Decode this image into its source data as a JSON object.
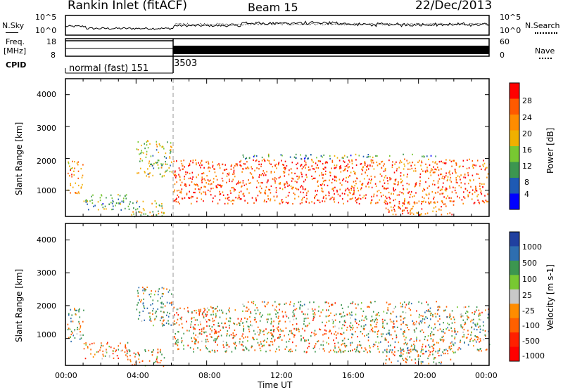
{
  "header": {
    "station": "Rankin Inlet (fitACF)",
    "beam": "Beam 15",
    "date": "22/Dec/2013"
  },
  "panels": {
    "nsky": {
      "label": "N.Sky",
      "right_label": "N.Search",
      "ticks": [
        "10^5",
        "10^0"
      ]
    },
    "freq": {
      "label_line1": "Freq.",
      "label_line2": "[MHz]",
      "left_ticks": [
        "18",
        "8"
      ],
      "right_ticks": [
        "60",
        "0"
      ],
      "right_label": "Nave"
    },
    "cpid": {
      "label": "CPID",
      "modes": [
        "normal (fast) 151",
        "3503"
      ]
    }
  },
  "time_axis": {
    "title": "Time UT",
    "ticks": [
      "00:00",
      "04:00",
      "08:00",
      "12:00",
      "16:00",
      "20:00",
      "00:00"
    ]
  },
  "range_axis": {
    "title": "Slant Range [km]",
    "ticks": [
      "4000",
      "3000",
      "2000",
      "1000"
    ]
  },
  "power_scale": {
    "title": "Power [dB]",
    "ticks": [
      "28",
      "24",
      "20",
      "16",
      "12",
      "8",
      "4"
    ],
    "colors": [
      "#ff0000",
      "#ff5a00",
      "#ff8c00",
      "#f0b000",
      "#78c832",
      "#3c9650",
      "#1e5ab4",
      "#0000ff"
    ]
  },
  "velocity_scale": {
    "title": "Velocity [m s-1]",
    "ticks": [
      "1000",
      "500",
      "100",
      "25",
      "-25",
      "-100",
      "-500",
      "-1000"
    ],
    "colors": [
      "#2040a0",
      "#2e6eb0",
      "#3c9650",
      "#78c832",
      "#c8c8c8",
      "#ff8c00",
      "#ff6000",
      "#ff2000",
      "#ff0000"
    ]
  },
  "chart_data": [
    {
      "type": "heatmap",
      "title": "Power",
      "xlabel": "Time UT",
      "ylabel": "Slant Range [km]",
      "xlim": [
        "00:00",
        "24:00"
      ],
      "ylim": [
        180,
        4500
      ],
      "colorbar": {
        "label": "Power [dB]",
        "range": [
          0,
          30
        ],
        "ticks": [
          4,
          8,
          12,
          16,
          20,
          24,
          28
        ]
      },
      "scatter_bands": [
        {
          "t0": 0.1,
          "t1": 1.0,
          "r0": 900,
          "r1": 2000,
          "value": 22
        },
        {
          "t0": 1.0,
          "t1": 3.5,
          "r0": 400,
          "r1": 900,
          "value": 10
        },
        {
          "t0": 3.5,
          "t1": 5.6,
          "r0": 180,
          "r1": 700,
          "value": 14
        },
        {
          "t0": 4.0,
          "t1": 6.0,
          "r0": 1400,
          "r1": 2600,
          "value": 14
        },
        {
          "t0": 6.1,
          "t1": 16.0,
          "r0": 600,
          "r1": 2000,
          "value": 27
        },
        {
          "t0": 10.0,
          "t1": 16.0,
          "r0": 2000,
          "r1": 2150,
          "value": 9
        },
        {
          "t0": 16.0,
          "t1": 24.0,
          "r0": 600,
          "r1": 2000,
          "value": 25
        },
        {
          "t0": 18.0,
          "t1": 22.0,
          "r0": 250,
          "r1": 700,
          "value": 24
        },
        {
          "t0": 16.0,
          "t1": 21.0,
          "r0": 2050,
          "r1": 2150,
          "value": 8
        }
      ]
    },
    {
      "type": "heatmap",
      "title": "Velocity",
      "xlabel": "Time UT",
      "ylabel": "Slant Range [km]",
      "xlim": [
        "00:00",
        "24:00"
      ],
      "ylim": [
        180,
        4500
      ],
      "colorbar": {
        "label": "Velocity [m s-1]",
        "range": [
          -1000,
          1000
        ],
        "ticks": [
          1000,
          500,
          100,
          25,
          -25,
          -100,
          -500,
          -1000
        ]
      },
      "scatter_bands": [
        {
          "t0": 0.1,
          "t1": 1.0,
          "r0": 900,
          "r1": 2000,
          "value": 100
        },
        {
          "t0": 1.0,
          "t1": 3.5,
          "r0": 400,
          "r1": 900,
          "value": -300
        },
        {
          "t0": 3.5,
          "t1": 5.6,
          "r0": 180,
          "r1": 700,
          "value": -200
        },
        {
          "t0": 4.0,
          "t1": 6.0,
          "r0": 1400,
          "r1": 2600,
          "value": 300
        },
        {
          "t0": 6.1,
          "t1": 16.0,
          "r0": 600,
          "r1": 2000,
          "value": -100
        },
        {
          "t0": 10.0,
          "t1": 16.0,
          "r0": 2000,
          "r1": 2150,
          "value": 0
        },
        {
          "t0": 16.0,
          "t1": 24.0,
          "r0": 600,
          "r1": 2000,
          "value": 50
        },
        {
          "t0": 18.0,
          "t1": 22.0,
          "r0": 250,
          "r1": 700,
          "value": 0
        },
        {
          "t0": 16.0,
          "t1": 21.0,
          "r0": 2050,
          "r1": 2150,
          "value": 0
        }
      ]
    }
  ]
}
